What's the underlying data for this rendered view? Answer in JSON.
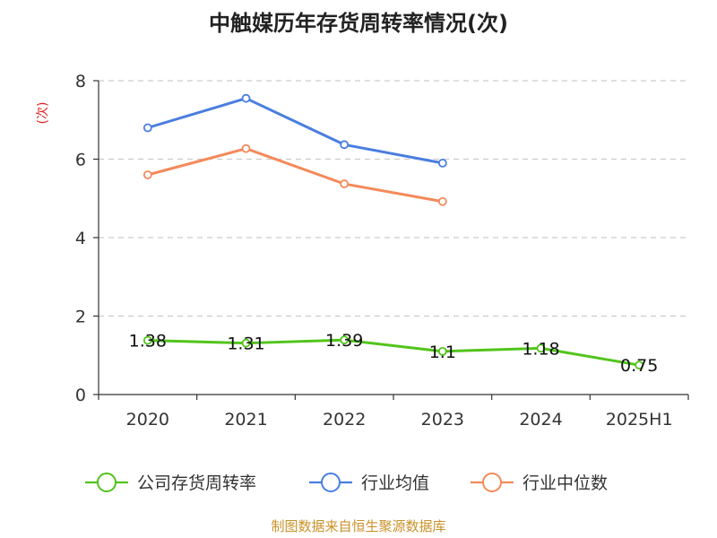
{
  "chart_data": {
    "type": "line",
    "title": "中触媒历年存货周转率情况(次)",
    "ylabel": "(次)",
    "categories": [
      "2020",
      "2021",
      "2022",
      "2023",
      "2024",
      "2025H1"
    ],
    "ylim": [
      0,
      8
    ],
    "yticks": [
      "0",
      "2",
      "4",
      "6",
      "8"
    ],
    "grid": true,
    "legend_position": "bottom",
    "series": [
      {
        "name": "公司存货周转率",
        "color": "#52c41a",
        "values": [
          1.38,
          1.31,
          1.39,
          1.1,
          1.18,
          0.75
        ],
        "labels": [
          "1.38",
          "1.31",
          "1.39",
          "1.1",
          "1.18",
          "0.75"
        ]
      },
      {
        "name": "行业均值",
        "color": "#4a7ee0",
        "values": [
          6.8,
          7.55,
          6.37,
          5.9,
          null,
          null
        ]
      },
      {
        "name": "行业中位数",
        "color": "#f4895a",
        "values": [
          5.6,
          6.27,
          5.37,
          4.92,
          null,
          null
        ]
      }
    ],
    "source": "制图数据来自恒生聚源数据库",
    "unit_color": "#e02020",
    "source_color": "#c8922a"
  }
}
